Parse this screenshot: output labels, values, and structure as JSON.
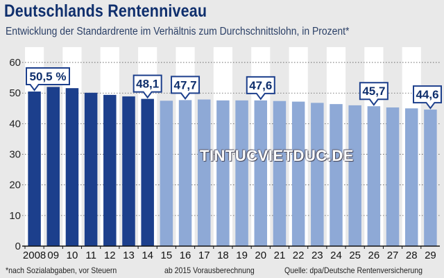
{
  "header": {
    "title": "Deutschlands Rentenniveau",
    "subtitle": "Entwicklung der Standardrente im Verhältnis zum Durchschnittslohn, in Prozent*"
  },
  "footer": {
    "note": "*nach Sozialabgaben, vor Steuern",
    "forecast_note": "ab 2015 Vorausberechnung",
    "source": "Quelle: dpa/Deutsche Rentenversicherung"
  },
  "watermark": "TINTUCVIETDUC.DE",
  "colors": {
    "actual": "#1c3f8c",
    "forecast": "#8ea9d6",
    "label_border": "#1c3f8c",
    "background": "#e9e9e9",
    "stripe": "#ffffff",
    "title": "#0f2f6d"
  },
  "chart_data": {
    "type": "bar",
    "title": "Deutschlands Rentenniveau",
    "subtitle": "Entwicklung der Standardrente im Verhältnis zum Durchschnittslohn, in Prozent*",
    "categories": [
      "2008",
      "09",
      "10",
      "11",
      "12",
      "13",
      "14",
      "15",
      "16",
      "17",
      "18",
      "19",
      "20",
      "21",
      "22",
      "23",
      "24",
      "25",
      "26",
      "27",
      "28",
      "29"
    ],
    "series": [
      {
        "values": [
          50.5,
          52.0,
          51.6,
          50.1,
          49.4,
          48.9,
          48.1,
          47.5,
          47.7,
          47.9,
          47.6,
          47.6,
          47.6,
          47.4,
          47.2,
          46.8,
          46.4,
          46.0,
          45.7,
          45.3,
          45.0,
          44.6
        ]
      }
    ],
    "forecast_from": "15",
    "data_labels": [
      {
        "category": "2008",
        "text": "50,5 %"
      },
      {
        "category": "14",
        "text": "48,1"
      },
      {
        "category": "16",
        "text": "47,7"
      },
      {
        "category": "20",
        "text": "47,6"
      },
      {
        "category": "26",
        "text": "45,7"
      },
      {
        "category": "29",
        "text": "44,6"
      }
    ],
    "y_ticks": [
      "0",
      "10",
      "20",
      "30",
      "40",
      "50",
      "60"
    ],
    "ylim": [
      0,
      65
    ],
    "grid": true,
    "xlabel": "",
    "ylabel": ""
  }
}
